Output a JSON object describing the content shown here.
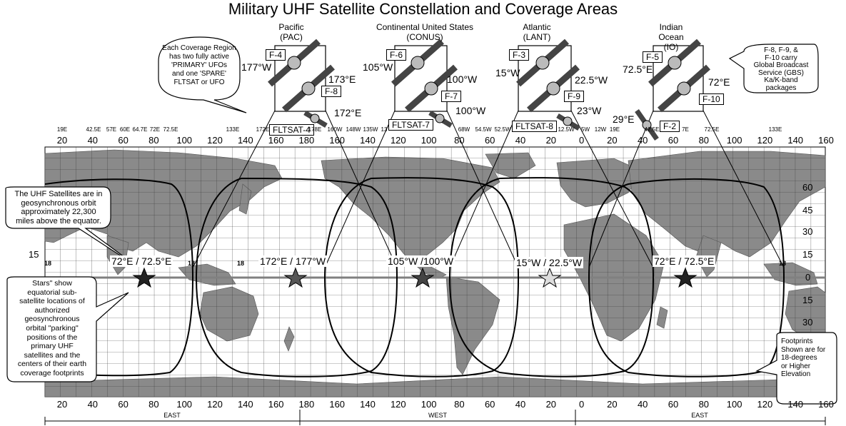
{
  "title": "Military UHF Satellite Constellation and Coverage Areas",
  "regions": [
    {
      "line1": "Pacific",
      "line2": "(PAC)"
    },
    {
      "line1": "Continental United States",
      "line2": "(CONUS)"
    },
    {
      "line1": "Atlantic",
      "line2": "(LANT)"
    },
    {
      "line1": "Indian Ocean",
      "line2": "(IO)"
    }
  ],
  "callouts": {
    "coverage_region": [
      "Each Coverage Region",
      "has two fully active",
      "'PRIMARY' UFOs",
      "and one 'SPARE'",
      "FLTSAT or UFO"
    ],
    "gbs": [
      "F-8, F-9, &",
      "F-10 carry",
      "Global Broadcast",
      "Service (GBS)",
      "Ka/K-band",
      "packages"
    ],
    "orbit": [
      "The UHF Satellites are in",
      "geosynchronous orbit",
      "approximately 22,300",
      "miles above the equator."
    ],
    "stars": [
      "Stars\" show",
      "equatorial sub-",
      "satellite locations of",
      "authorized",
      "geosynchronous",
      "orbital \"parking\"",
      "positions of the",
      "primary UHF",
      "satellites and the",
      "centers of their earth",
      "coverage footprints"
    ],
    "footprints": [
      "Footprints",
      "Shown are for",
      "18-degrees",
      "or Higher",
      "Elevation"
    ]
  },
  "satellites": {
    "f4": "F-4",
    "f8": "F-8",
    "fltsat4": "FLTSAT-4",
    "f6": "F-6",
    "f7": "F-7",
    "fltsat7": "FLTSAT-7",
    "f3": "F-3",
    "f9": "F-9",
    "fltsat8": "FLTSAT-8",
    "f5": "F-5",
    "f10": "F-10",
    "f2": "F-2"
  },
  "sat_longitudes": {
    "pac_177": "177°W",
    "pac_173": "173°E",
    "pac_172": "172°E",
    "conus_105": "105°W",
    "conus_100a": "100°W",
    "conus_100b": "100°W",
    "lant_15": "15°W",
    "lant_225": "22.5°W",
    "lant_23": "23°W",
    "io_725": "72.5°E",
    "io_72": "72°E",
    "io_29": "29°E"
  },
  "slot_labels": [
    "72°E / 72.5°E",
    "172°E / 177°W",
    "105°W /100°W",
    "15°W / 22.5°W",
    "72°E / 72.5°E"
  ],
  "ticks_top": [
    "20",
    "40",
    "60",
    "80",
    "100",
    "120",
    "140",
    "160",
    "180",
    "160",
    "140",
    "120",
    "100",
    "80",
    "60",
    "40",
    "20",
    "0",
    "20",
    "40",
    "60",
    "80",
    "100",
    "120",
    "140",
    "160"
  ],
  "ticks_bottom": [
    "20",
    "40",
    "60",
    "80",
    "100",
    "120",
    "140",
    "160",
    "180",
    "160",
    "140",
    "120",
    "100",
    "80",
    "60",
    "40",
    "20",
    "0",
    "20",
    "40",
    "60",
    "80",
    "100",
    "120",
    "140",
    "160"
  ],
  "small_ticks": {
    "a": "19E",
    "b": "42.5E",
    "c": "57E",
    "d": "60E",
    "e": "64.7E",
    "f": "72E",
    "g": "72.5E",
    "h": "133E",
    "i": "172E",
    "j": "178E",
    "k": "160W",
    "l": "148W",
    "m": "135W",
    "n": "13",
    "o": "68W",
    "p": "54.5W",
    "q": "52.5W",
    "r": "12.5W",
    "s": "5W",
    "t": "12W",
    "u": "19E",
    "v": "42.5E",
    "w": "7E",
    "x": "72.5E",
    "y": "133E"
  },
  "lat_right": [
    "60",
    "45",
    "30",
    "15",
    "0",
    "15",
    "30"
  ],
  "lat_left": "15",
  "edge_marks": [
    "18",
    "18",
    "18",
    "18"
  ],
  "hemispheres": [
    "EAST",
    "WEST",
    "EAST"
  ],
  "colors": {
    "land": "#8c8c8c",
    "land_dark": "#5a5a5a",
    "ocean": "#ffffff",
    "equator": "#808080",
    "ink": "#000000"
  }
}
